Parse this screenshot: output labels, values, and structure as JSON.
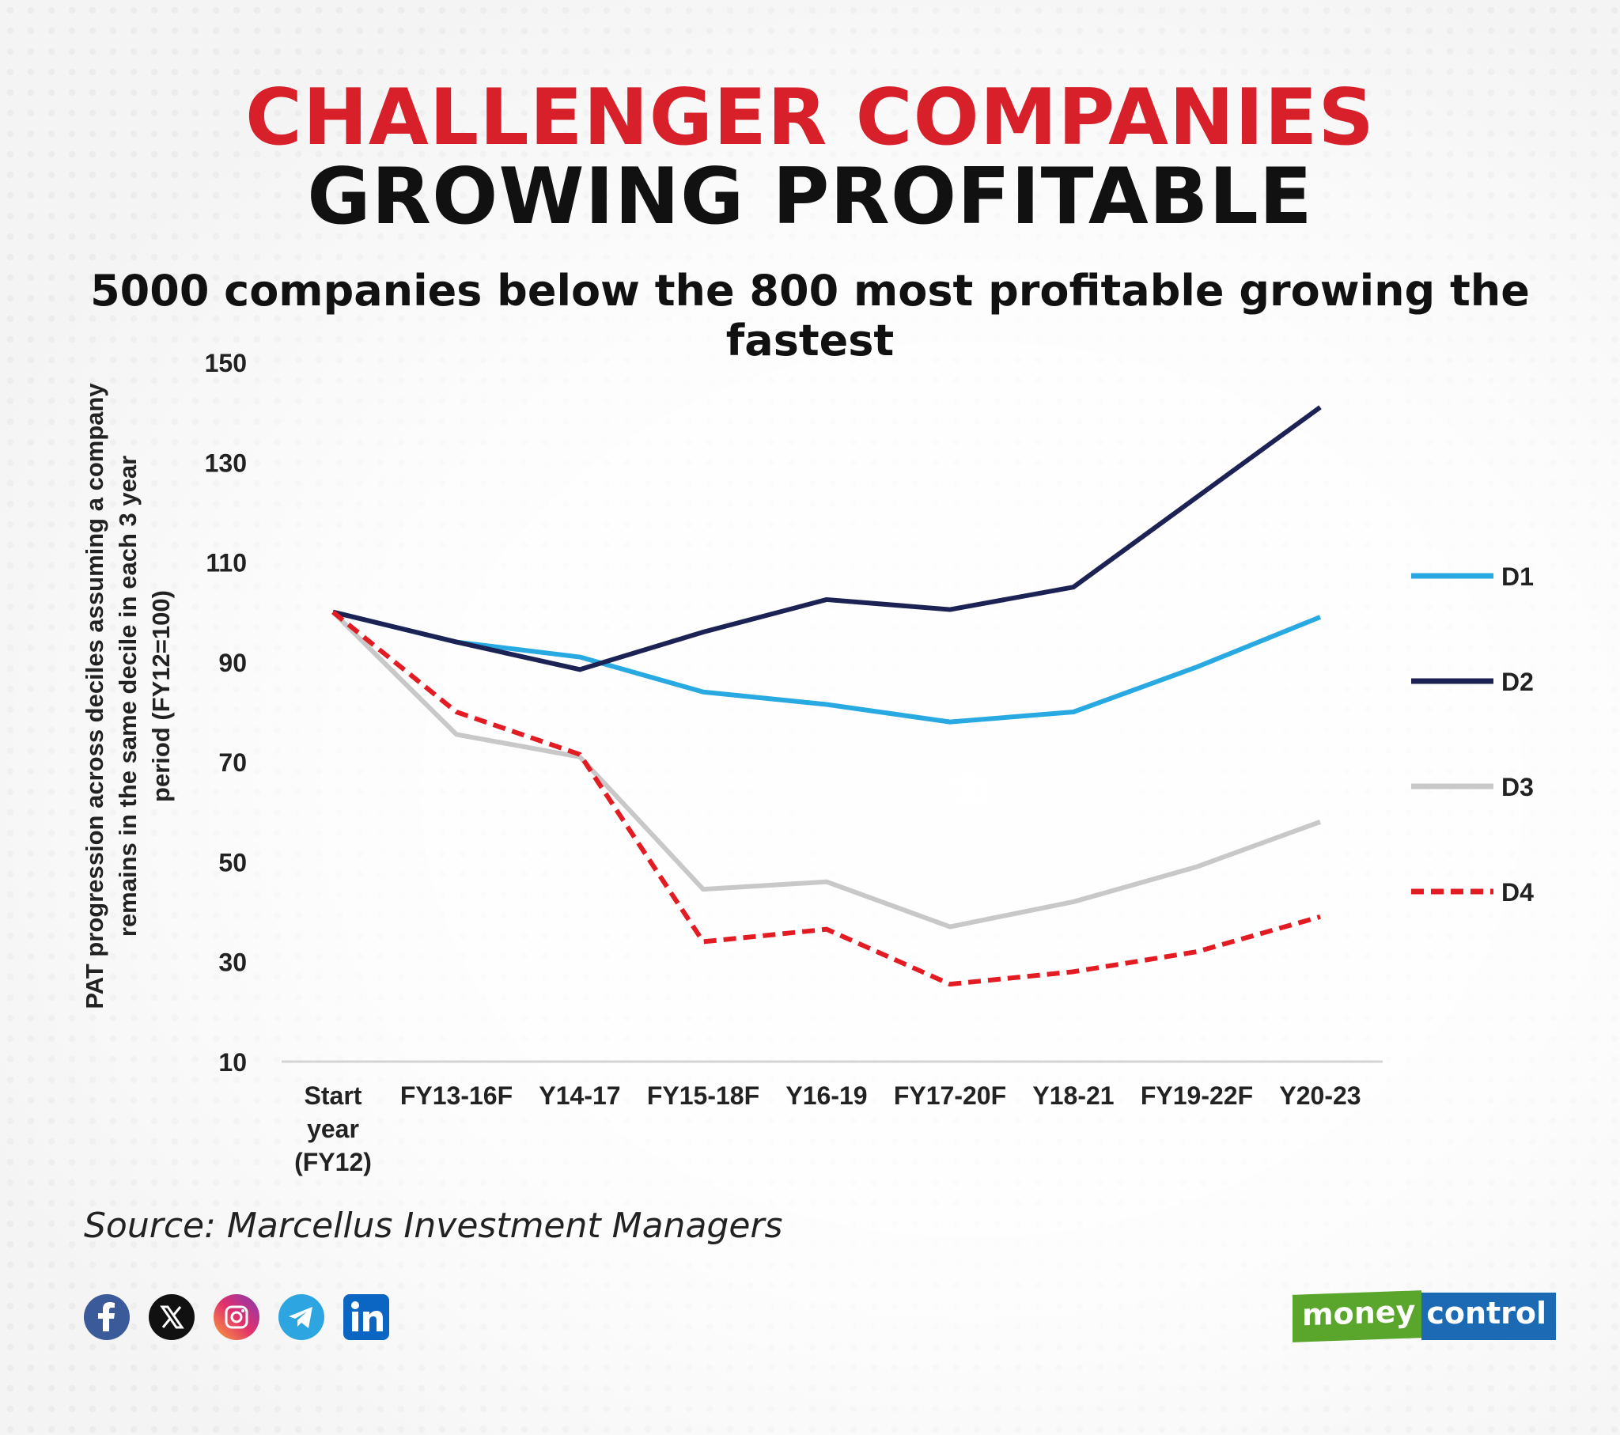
{
  "title_line1": "CHALLENGER COMPANIES",
  "title_line2": "GROWING PROFITABLE",
  "subtitle": "5000 companies below the 800 most profitable growing the fastest",
  "source": "Source: Marcellus Investment Managers",
  "brand": {
    "part1": "money",
    "part2": "control"
  },
  "social_icons": [
    "facebook-icon",
    "x-icon",
    "instagram-icon",
    "telegram-icon",
    "linkedin-icon"
  ],
  "chart_data": {
    "type": "line",
    "ylabel": "PAT progression across deciles assuming a company remains in the same decile in each 3 year period (FY12=100)",
    "xlabel": "",
    "ylim": [
      10,
      150
    ],
    "yticks": [
      150,
      130,
      110,
      90,
      70,
      50,
      30,
      10
    ],
    "categories": [
      [
        "Start",
        "year",
        "(FY12)"
      ],
      [
        "FY13-16F"
      ],
      [
        "Y14-17"
      ],
      [
        "FY15-18F"
      ],
      [
        "Y16-19"
      ],
      [
        "FY17-20F"
      ],
      [
        "Y18-21"
      ],
      [
        "FY19-22F"
      ],
      [
        "Y20-23"
      ]
    ],
    "legend_position": "right",
    "series": [
      {
        "name": "D1",
        "color": "#28a9e1",
        "dashed": false,
        "values": [
          100,
          94,
          91,
          84,
          81.5,
          78,
          80,
          89,
          99
        ]
      },
      {
        "name": "D2",
        "color": "#1c2354",
        "dashed": false,
        "values": [
          100,
          94,
          88.5,
          96,
          102.5,
          100.5,
          105,
          123,
          141
        ]
      },
      {
        "name": "D3",
        "color": "#c8c8c8",
        "dashed": false,
        "values": [
          100,
          75.5,
          71,
          44.5,
          46,
          37,
          42,
          49,
          58
        ]
      },
      {
        "name": "D4",
        "color": "#e21c22",
        "dashed": true,
        "values": [
          100,
          80,
          71.5,
          34,
          36.5,
          25.5,
          28,
          32,
          39
        ]
      }
    ]
  }
}
